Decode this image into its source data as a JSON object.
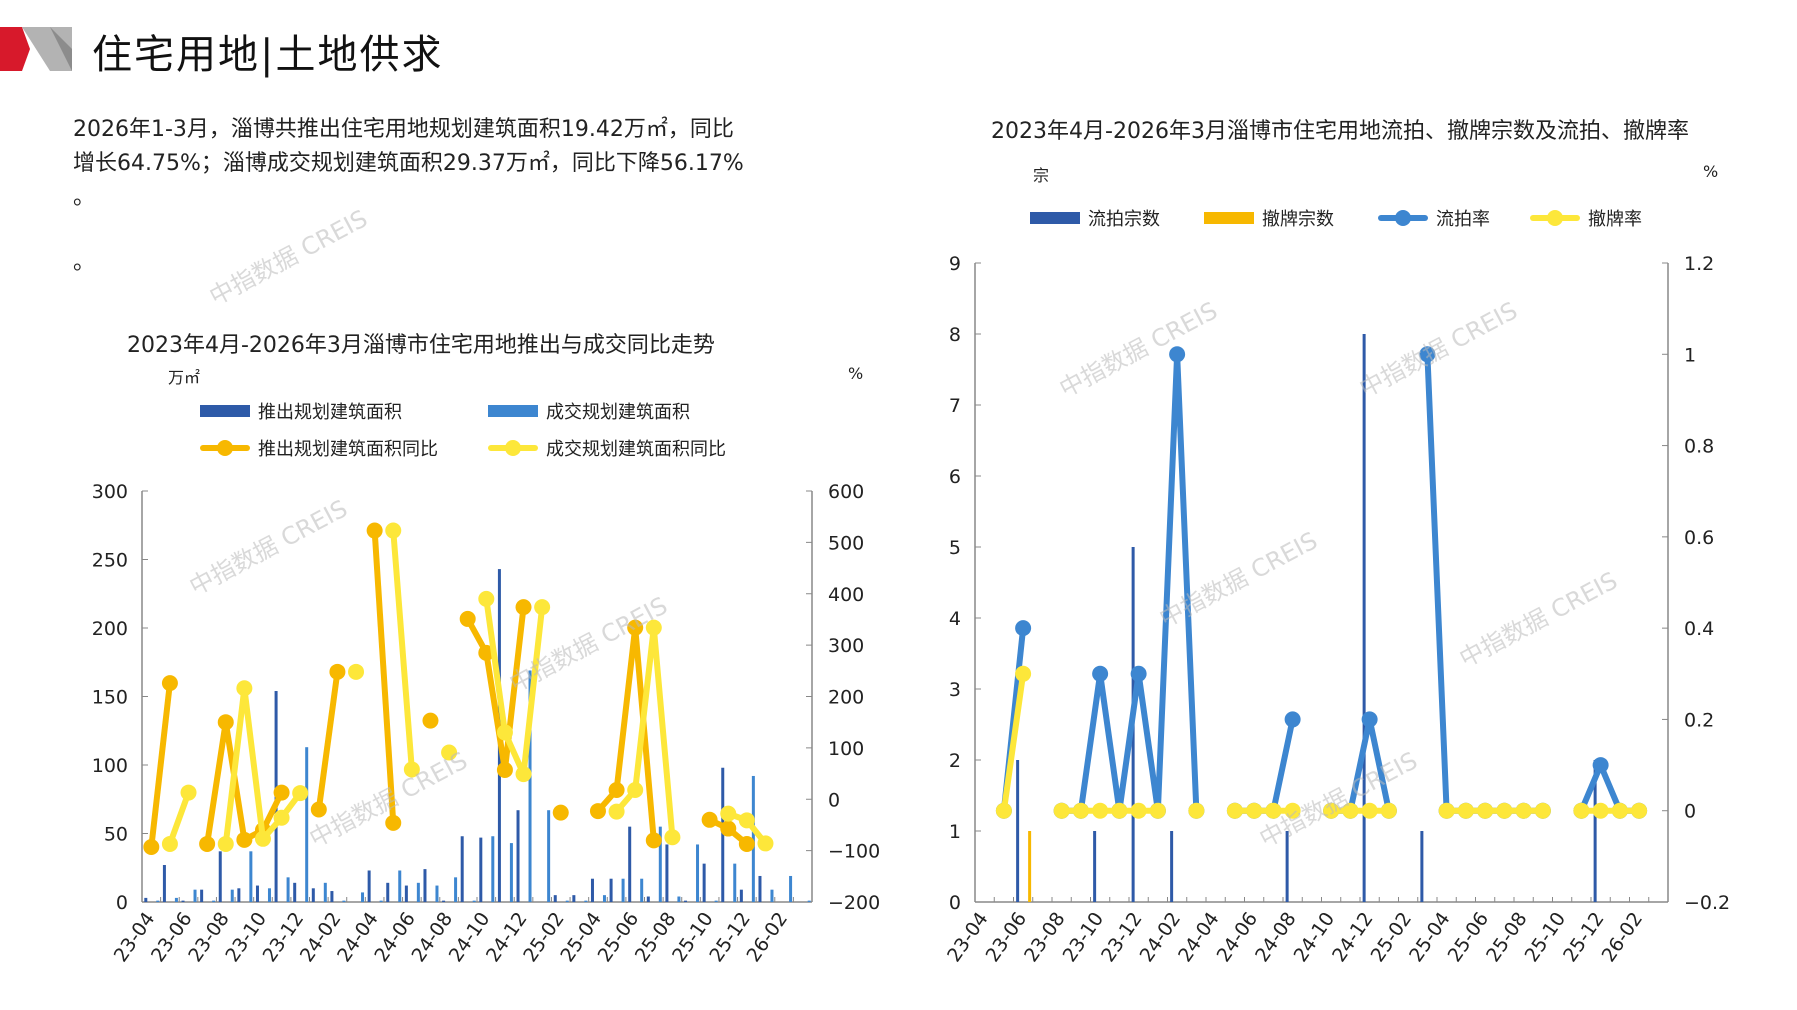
{
  "header": {
    "title": "住宅用地|土地供求",
    "brand_colors": [
      "#d7192b",
      "#b3b3b3"
    ]
  },
  "summary": {
    "line1": "2026年1-3月，淄博共推出住宅用地规划建筑面积19.42万㎡，同比",
    "line2": "增长64.75%；淄博成交规划建筑面积29.37万㎡，同比下降56.17%",
    "line3": "。",
    "line4": "。"
  },
  "watermark": "中指数据 CREIS",
  "chart_data": [
    {
      "type": "bar+line",
      "title": "2023年4月-2026年3月淄博市住宅用地推出与成交同比走势",
      "ylabel": "万㎡",
      "y2label": "%",
      "ylim": [
        0,
        300
      ],
      "yticks": [
        0,
        50,
        100,
        150,
        200,
        250,
        300
      ],
      "y2lim": [
        -200,
        600
      ],
      "y2ticks": [
        -200,
        -100,
        0,
        100,
        200,
        300,
        400,
        500,
        600
      ],
      "y2tick_labels": [
        "−200",
        "−100",
        "0",
        "100",
        "200",
        "300",
        "400",
        "500",
        "600"
      ],
      "legend_position": "top",
      "x": [
        "23-04",
        "23-05",
        "23-06",
        "23-07",
        "23-08",
        "23-09",
        "23-10",
        "23-11",
        "23-12",
        "24-01",
        "24-02",
        "24-03",
        "24-04",
        "24-05",
        "24-06",
        "24-07",
        "24-08",
        "24-09",
        "24-10",
        "24-11",
        "24-12",
        "25-01",
        "25-02",
        "25-03",
        "25-04",
        "25-05",
        "25-06",
        "25-07",
        "25-08",
        "25-09",
        "25-10",
        "25-11",
        "25-12",
        "26-01",
        "26-02",
        "26-03"
      ],
      "xtick_labels": [
        "23-04",
        "23-06",
        "23-08",
        "23-10",
        "23-12",
        "24-02",
        "24-04",
        "24-06",
        "24-08",
        "24-10",
        "24-12",
        "25-02",
        "25-04",
        "25-06",
        "25-08",
        "25-10",
        "25-12",
        "26-02"
      ],
      "series": [
        {
          "name": "推出规划建筑面积",
          "kind": "bar",
          "axis": "left",
          "color": "#2e5aa8",
          "values": [
            3,
            27,
            1,
            9,
            37,
            10,
            12,
            154,
            14,
            10,
            8,
            0,
            23,
            14,
            12,
            24,
            1,
            48,
            47,
            243,
            67,
            0,
            5,
            5,
            17,
            17,
            55,
            4,
            42,
            1,
            28,
            98,
            9,
            19,
            0,
            0
          ]
        },
        {
          "name": "成交规划建筑面积",
          "kind": "bar",
          "axis": "left",
          "color": "#3d86d0",
          "values": [
            1,
            3,
            9,
            1,
            9,
            37,
            10,
            18,
            113,
            14,
            1,
            7,
            1,
            23,
            14,
            12,
            18,
            1,
            48,
            43,
            169,
            67,
            1,
            1,
            5,
            17,
            17,
            55,
            4,
            42,
            1,
            28,
            92,
            9,
            19,
            1
          ]
        },
        {
          "name": "推出规划建筑面积同比",
          "kind": "line",
          "axis": "right",
          "color": "#f7b800",
          "values": [
            -93,
            226,
            null,
            -87,
            150,
            -79,
            -60,
            13,
            null,
            -20,
            248,
            null,
            523,
            -46,
            null,
            153,
            null,
            351,
            285,
            57,
            374,
            null,
            -26,
            null,
            -23,
            18,
            334,
            -80,
            null,
            null,
            -40,
            -57,
            -87,
            null,
            null,
            null
          ]
        },
        {
          "name": "成交规划建筑面积同比",
          "kind": "line",
          "axis": "right",
          "color": "#fde73a",
          "values": [
            null,
            -87,
            13,
            null,
            -87,
            216,
            -77,
            -36,
            12,
            null,
            null,
            248,
            null,
            523,
            58,
            null,
            91,
            null,
            390,
            130,
            49,
            374,
            null,
            null,
            null,
            -24,
            18,
            334,
            -74,
            null,
            null,
            -28,
            -41,
            -86,
            null,
            null
          ]
        }
      ]
    },
    {
      "type": "bar+line",
      "title": "2023年4月-2026年3月淄博市住宅用地流拍、撤牌宗数及流拍、撤牌率",
      "ylabel": "宗",
      "y2label": "%",
      "ylim": [
        0,
        9
      ],
      "yticks": [
        0,
        1,
        2,
        3,
        4,
        5,
        6,
        7,
        8,
        9
      ],
      "y2lim": [
        -0.2,
        1.2
      ],
      "y2ticks": [
        -0.2,
        0,
        0.2,
        0.4,
        0.6,
        0.8,
        1,
        1.2
      ],
      "y2tick_labels": [
        "−0.2",
        "0",
        "0.2",
        "0.4",
        "0.6",
        "0.8",
        "1",
        "1.2"
      ],
      "legend_position": "top",
      "x": [
        "23-04",
        "23-05",
        "23-06",
        "23-07",
        "23-08",
        "23-09",
        "23-10",
        "23-11",
        "23-12",
        "24-01",
        "24-02",
        "24-03",
        "24-04",
        "24-05",
        "24-06",
        "24-07",
        "24-08",
        "24-09",
        "24-10",
        "24-11",
        "24-12",
        "25-01",
        "25-02",
        "25-03",
        "25-04",
        "25-05",
        "25-06",
        "25-07",
        "25-08",
        "25-09",
        "25-10",
        "25-11",
        "25-12",
        "26-01",
        "26-02",
        "26-03"
      ],
      "xtick_labels": [
        "23-04",
        "23-06",
        "23-08",
        "23-10",
        "23-12",
        "24-02",
        "24-04",
        "24-06",
        "24-08",
        "24-10",
        "24-12",
        "25-02",
        "25-04",
        "25-06",
        "25-08",
        "25-10",
        "25-12",
        "26-02"
      ],
      "series": [
        {
          "name": "流拍宗数",
          "kind": "bar",
          "axis": "left",
          "color": "#2e5aa8",
          "values": [
            0,
            0,
            2,
            0,
            0,
            0,
            1,
            0,
            5,
            0,
            1,
            0,
            0,
            0,
            0,
            0,
            1,
            0,
            0,
            0,
            8,
            0,
            0,
            1,
            0,
            0,
            0,
            0,
            0,
            0,
            0,
            0,
            2,
            0,
            0,
            0
          ]
        },
        {
          "name": "撤牌宗数",
          "kind": "bar",
          "axis": "left",
          "color": "#f7b800",
          "values": [
            0,
            0,
            1,
            0,
            0,
            0,
            0,
            0,
            0,
            0,
            0,
            0,
            0,
            0,
            0,
            0,
            0,
            0,
            0,
            0,
            0,
            0,
            0,
            0,
            0,
            0,
            0,
            0,
            0,
            0,
            0,
            0,
            0,
            0,
            0,
            0
          ]
        },
        {
          "name": "流拍率",
          "kind": "line",
          "axis": "right",
          "color": "#3d86d0",
          "values": [
            null,
            0,
            0.4,
            null,
            0,
            0,
            0.3,
            0,
            0.3,
            0,
            1.0,
            0,
            null,
            0,
            0,
            0,
            0.2,
            null,
            0,
            0,
            0.2,
            0,
            null,
            1.0,
            0,
            0,
            0,
            0,
            0,
            0,
            null,
            0,
            0.1,
            0,
            0,
            null
          ]
        },
        {
          "name": "撤牌率",
          "kind": "line",
          "axis": "right",
          "color": "#fde73a",
          "values": [
            null,
            0,
            0.3,
            null,
            0,
            0,
            0,
            0,
            0,
            0,
            null,
            0,
            null,
            0,
            0,
            0,
            0,
            null,
            0,
            0,
            0,
            0,
            null,
            null,
            0,
            0,
            0,
            0,
            0,
            0,
            null,
            0,
            0,
            0,
            0,
            null
          ]
        }
      ]
    }
  ]
}
